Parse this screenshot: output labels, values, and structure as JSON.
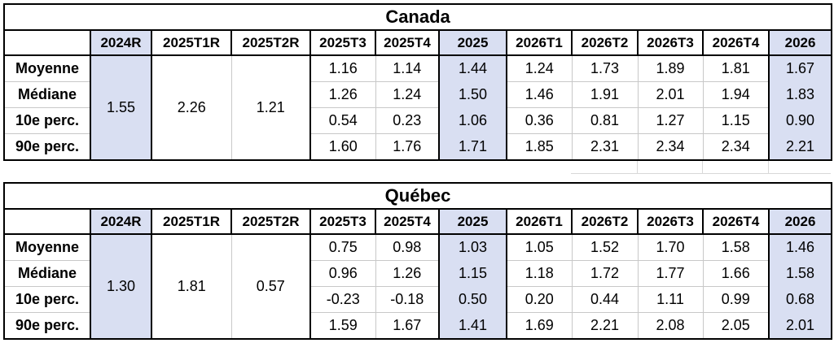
{
  "colors": {
    "highlight_fill": "#d9dff2",
    "gridline_gray": "#c8c8c8",
    "table_border": "#000000",
    "text": "#000000",
    "background": "#ffffff"
  },
  "tables": [
    {
      "title": "Canada",
      "columns": [
        "",
        "2024R",
        "2025T1R",
        "2025T2R",
        "2025T3",
        "2025T4",
        "2025",
        "2026T1",
        "2026T2",
        "2026T3",
        "2026T4",
        "2026"
      ],
      "highlight_columns": [
        "2024R",
        "2025",
        "2026"
      ],
      "merged_columns": [
        {
          "column": "2024R",
          "value": "1.55"
        },
        {
          "column": "2025T1R",
          "value": "2.26"
        },
        {
          "column": "2025T2R",
          "value": "1.21"
        }
      ],
      "rows": [
        {
          "label": "Moyenne",
          "values": [
            "1.16",
            "1.14",
            "1.44",
            "1.24",
            "1.73",
            "1.89",
            "1.81",
            "1.67"
          ]
        },
        {
          "label": "Médiane",
          "values": [
            "1.26",
            "1.24",
            "1.50",
            "1.46",
            "1.91",
            "2.01",
            "1.94",
            "1.83"
          ]
        },
        {
          "label": "10e perc.",
          "values": [
            "0.54",
            "0.23",
            "1.06",
            "0.36",
            "0.81",
            "1.27",
            "1.15",
            "0.90"
          ]
        },
        {
          "label": "90e perc.",
          "values": [
            "1.60",
            "1.76",
            "1.71",
            "1.85",
            "2.31",
            "2.34",
            "2.34",
            "2.21"
          ]
        }
      ]
    },
    {
      "title": "Québec",
      "columns": [
        "",
        "2024R",
        "2025T1R",
        "2025T2R",
        "2025T3",
        "2025T4",
        "2025",
        "2026T1",
        "2026T2",
        "2026T3",
        "2026T4",
        "2026"
      ],
      "highlight_columns": [
        "2024R",
        "2025",
        "2026"
      ],
      "merged_columns": [
        {
          "column": "2024R",
          "value": "1.30"
        },
        {
          "column": "2025T1R",
          "value": "1.81"
        },
        {
          "column": "2025T2R",
          "value": "0.57"
        }
      ],
      "rows": [
        {
          "label": "Moyenne",
          "values": [
            "0.75",
            "0.98",
            "1.03",
            "1.05",
            "1.52",
            "1.70",
            "1.58",
            "1.46"
          ]
        },
        {
          "label": "Médiane",
          "values": [
            "0.96",
            "1.26",
            "1.15",
            "1.18",
            "1.72",
            "1.77",
            "1.66",
            "1.58"
          ]
        },
        {
          "label": "10e perc.",
          "values": [
            "-0.23",
            "-0.18",
            "0.50",
            "0.20",
            "0.44",
            "1.11",
            "0.99",
            "0.68"
          ]
        },
        {
          "label": "90e perc.",
          "values": [
            "1.59",
            "1.67",
            "1.41",
            "1.69",
            "2.21",
            "2.08",
            "2.05",
            "2.01"
          ]
        }
      ]
    }
  ]
}
